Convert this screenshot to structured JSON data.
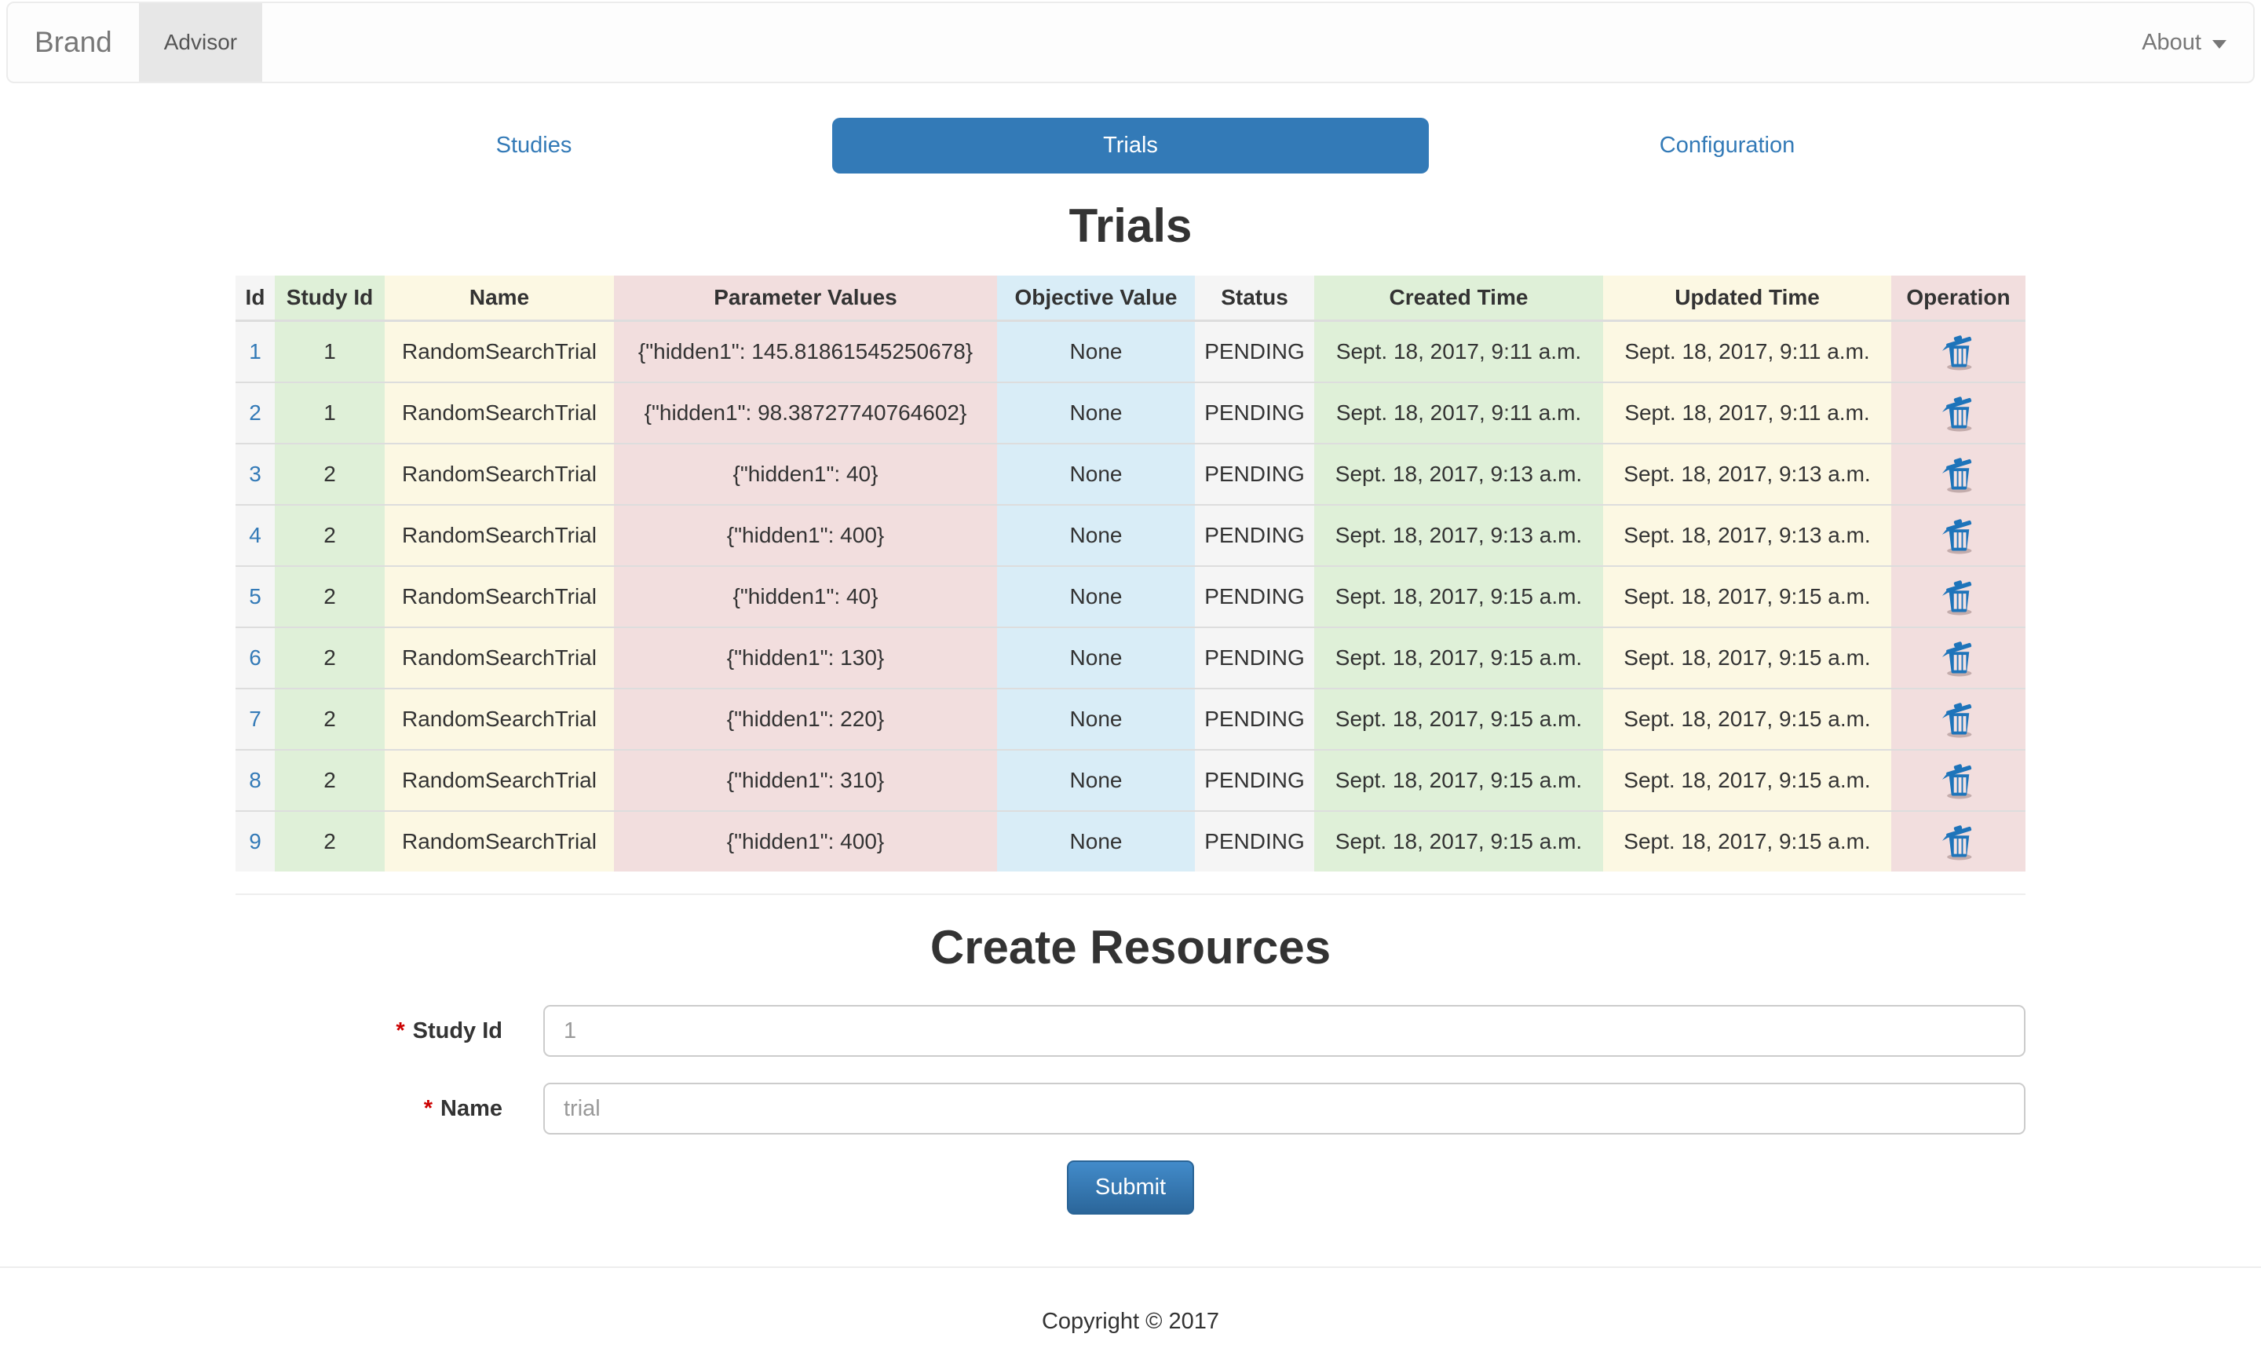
{
  "navbar": {
    "brand": "Brand",
    "active_item": "Advisor",
    "about": "About"
  },
  "tabs": [
    {
      "label": "Studies",
      "active": false
    },
    {
      "label": "Trials",
      "active": true
    },
    {
      "label": "Configuration",
      "active": false
    }
  ],
  "page": {
    "title": "Trials",
    "create_title": "Create Resources",
    "footer": "Copyright © 2017"
  },
  "table": {
    "headers": [
      "Id",
      "Study Id",
      "Name",
      "Parameter Values",
      "Objective Value",
      "Status",
      "Created Time",
      "Updated Time",
      "Operation"
    ],
    "rows": [
      {
        "id": "1",
        "study_id": "1",
        "name": "RandomSearchTrial",
        "param": "{\"hidden1\": 145.81861545250678}",
        "objective": "None",
        "status": "PENDING",
        "created": "Sept. 18, 2017, 9:11 a.m.",
        "updated": "Sept. 18, 2017, 9:11 a.m."
      },
      {
        "id": "2",
        "study_id": "1",
        "name": "RandomSearchTrial",
        "param": "{\"hidden1\": 98.38727740764602}",
        "objective": "None",
        "status": "PENDING",
        "created": "Sept. 18, 2017, 9:11 a.m.",
        "updated": "Sept. 18, 2017, 9:11 a.m."
      },
      {
        "id": "3",
        "study_id": "2",
        "name": "RandomSearchTrial",
        "param": "{\"hidden1\": 40}",
        "objective": "None",
        "status": "PENDING",
        "created": "Sept. 18, 2017, 9:13 a.m.",
        "updated": "Sept. 18, 2017, 9:13 a.m."
      },
      {
        "id": "4",
        "study_id": "2",
        "name": "RandomSearchTrial",
        "param": "{\"hidden1\": 400}",
        "objective": "None",
        "status": "PENDING",
        "created": "Sept. 18, 2017, 9:13 a.m.",
        "updated": "Sept. 18, 2017, 9:13 a.m."
      },
      {
        "id": "5",
        "study_id": "2",
        "name": "RandomSearchTrial",
        "param": "{\"hidden1\": 40}",
        "objective": "None",
        "status": "PENDING",
        "created": "Sept. 18, 2017, 9:15 a.m.",
        "updated": "Sept. 18, 2017, 9:15 a.m."
      },
      {
        "id": "6",
        "study_id": "2",
        "name": "RandomSearchTrial",
        "param": "{\"hidden1\": 130}",
        "objective": "None",
        "status": "PENDING",
        "created": "Sept. 18, 2017, 9:15 a.m.",
        "updated": "Sept. 18, 2017, 9:15 a.m."
      },
      {
        "id": "7",
        "study_id": "2",
        "name": "RandomSearchTrial",
        "param": "{\"hidden1\": 220}",
        "objective": "None",
        "status": "PENDING",
        "created": "Sept. 18, 2017, 9:15 a.m.",
        "updated": "Sept. 18, 2017, 9:15 a.m."
      },
      {
        "id": "8",
        "study_id": "2",
        "name": "RandomSearchTrial",
        "param": "{\"hidden1\": 310}",
        "objective": "None",
        "status": "PENDING",
        "created": "Sept. 18, 2017, 9:15 a.m.",
        "updated": "Sept. 18, 2017, 9:15 a.m."
      },
      {
        "id": "9",
        "study_id": "2",
        "name": "RandomSearchTrial",
        "param": "{\"hidden1\": 400}",
        "objective": "None",
        "status": "PENDING",
        "created": "Sept. 18, 2017, 9:15 a.m.",
        "updated": "Sept. 18, 2017, 9:15 a.m."
      }
    ],
    "operation_icon": "trash-icon"
  },
  "form": {
    "required_marker": "*",
    "study_id_label": "Study Id",
    "study_id_placeholder": "1",
    "name_label": "Name",
    "name_placeholder": "trial",
    "submit_label": "Submit"
  },
  "colors": {
    "accent": "#337ab7",
    "trash_blue": "#1e74ba",
    "col_active": "#f5f5f5",
    "col_success": "#dff0d8",
    "col_warning": "#fcf8e3",
    "col_danger": "#f2dede",
    "col_info": "#d9edf7"
  }
}
